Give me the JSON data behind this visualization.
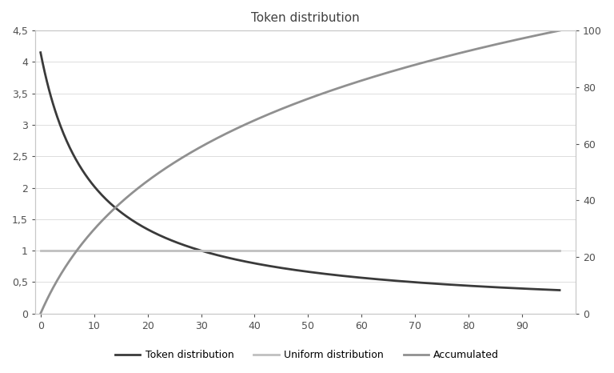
{
  "title": "Token distribution",
  "xlim": [
    -1,
    100
  ],
  "ylim_left": [
    0,
    4.5
  ],
  "ylim_right": [
    0,
    100
  ],
  "xticks": [
    0,
    10,
    20,
    30,
    40,
    50,
    60,
    70,
    80,
    90
  ],
  "yticks_left": [
    0,
    0.5,
    1.0,
    1.5,
    2.0,
    2.5,
    3.0,
    3.5,
    4.0,
    4.5
  ],
  "yticks_right": [
    0,
    20,
    40,
    60,
    80,
    100
  ],
  "ytick_labels_left": [
    "0",
    "0,5",
    "1",
    "1,5",
    "2",
    "2,5",
    "3",
    "3,5",
    "4",
    "4,5"
  ],
  "ytick_labels_right": [
    "0",
    "20",
    "40",
    "60",
    "80",
    "100"
  ],
  "token_dist_color": "#3a3a3a",
  "uniform_dist_color": "#c0c0c0",
  "accumulated_color": "#909090",
  "token_dist_label": "Token distribution",
  "uniform_dist_label": "Uniform distribution",
  "accumulated_label": "Accumulated",
  "background_color": "#ffffff",
  "n_points": 98,
  "x_start": 0,
  "harmonic_scale": 4.15,
  "line_width": 2.0
}
